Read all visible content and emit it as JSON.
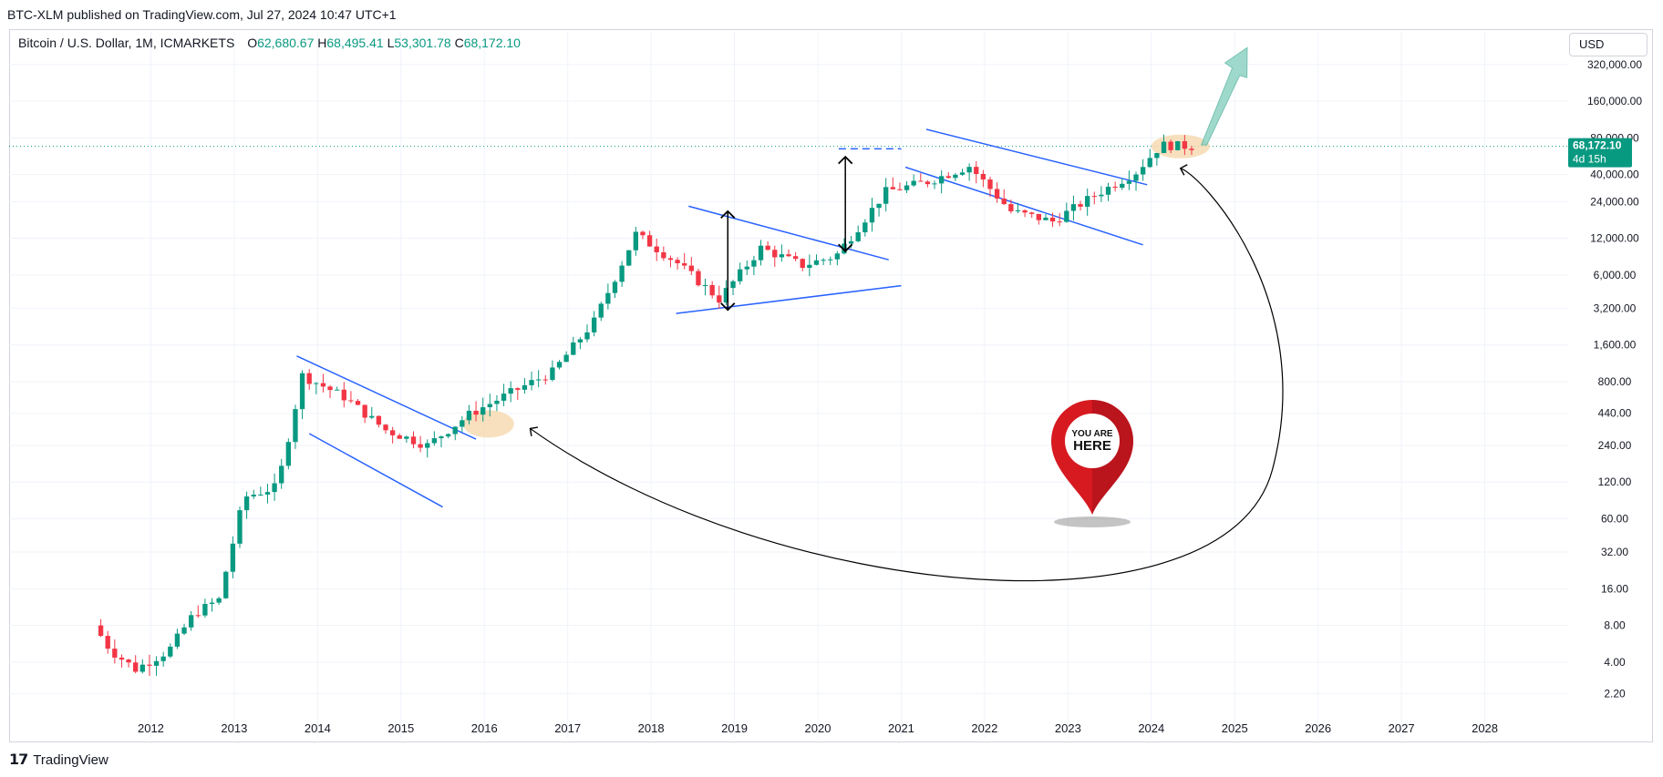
{
  "publisher": "BTC-XLM published on TradingView.com, Jul 27, 2024 10:47 UTC+1",
  "legend": {
    "symbol": "Bitcoin / U.S. Dollar, 1M, ICMARKETS",
    "open_label": "O",
    "open": "62,680.67",
    "high_label": "H",
    "high": "68,495.41",
    "low_label": "L",
    "low": "53,301.78",
    "close_label": "C",
    "close": "68,172.10"
  },
  "currency": "USD",
  "price_tag": {
    "price": "68,172.10",
    "countdown": "4d 15h"
  },
  "marker": {
    "line1": "YOU ARE",
    "line2": "HERE"
  },
  "footer": {
    "logo": "𝟭𝟳",
    "brand": "TradingView"
  },
  "colors": {
    "up": "#089981",
    "down": "#f23645",
    "trendline": "#2962ff",
    "highlight": "#f5d6a8",
    "arrow": "#8fd3c4",
    "pin": "#d71920"
  },
  "chart_data": {
    "type": "candlestick",
    "scale": "log",
    "grid": true,
    "y_ticks": [
      "320,000.00",
      "160,000.00",
      "80,000.00",
      "40,000.00",
      "24,000.00",
      "12,000.00",
      "6,000.00",
      "3,200.00",
      "1,600.00",
      "800.00",
      "440.00",
      "240.00",
      "120.00",
      "60.00",
      "32.00",
      "16.00",
      "8.00",
      "4.00",
      "2.20"
    ],
    "y_tick_values": [
      320000,
      160000,
      80000,
      40000,
      24000,
      12000,
      6000,
      3200,
      1600,
      800,
      440,
      240,
      120,
      60,
      32,
      16,
      8,
      4,
      2.2
    ],
    "x_ticks": [
      "2012",
      "2013",
      "2014",
      "2015",
      "2016",
      "2017",
      "2018",
      "2019",
      "2020",
      "2021",
      "2022",
      "2023",
      "2024",
      "2025",
      "2026",
      "2027",
      "2028"
    ],
    "x_tick_values": [
      2012,
      2013,
      2014,
      2015,
      2016,
      2017,
      2018,
      2019,
      2020,
      2021,
      2022,
      2023,
      2024,
      2025,
      2026,
      2027,
      2028
    ],
    "x_range": [
      2010.3,
      2029.0
    ],
    "y_range": [
      1.35,
      420000
    ],
    "last_price": 68172.1,
    "annual_close": [
      {
        "year": 2011.4,
        "value": 8
      },
      {
        "year": 2011.6,
        "value": 5
      },
      {
        "year": 2011.9,
        "value": 3.5
      },
      {
        "year": 2012.3,
        "value": 5
      },
      {
        "year": 2012.6,
        "value": 10
      },
      {
        "year": 2012.9,
        "value": 13
      },
      {
        "year": 2013.2,
        "value": 90
      },
      {
        "year": 2013.6,
        "value": 110
      },
      {
        "year": 2013.9,
        "value": 900
      },
      {
        "year": 2014.4,
        "value": 600
      },
      {
        "year": 2014.9,
        "value": 320
      },
      {
        "year": 2015.4,
        "value": 240
      },
      {
        "year": 2015.9,
        "value": 430
      },
      {
        "year": 2016.4,
        "value": 650
      },
      {
        "year": 2016.9,
        "value": 960
      },
      {
        "year": 2017.4,
        "value": 2500
      },
      {
        "year": 2017.9,
        "value": 13000
      },
      {
        "year": 2018.4,
        "value": 7500
      },
      {
        "year": 2018.9,
        "value": 3800
      },
      {
        "year": 2019.4,
        "value": 10000
      },
      {
        "year": 2019.9,
        "value": 7200
      },
      {
        "year": 2020.3,
        "value": 8600
      },
      {
        "year": 2020.9,
        "value": 29000
      },
      {
        "year": 2021.4,
        "value": 35000
      },
      {
        "year": 2021.9,
        "value": 47000
      },
      {
        "year": 2022.4,
        "value": 20000
      },
      {
        "year": 2022.9,
        "value": 16500
      },
      {
        "year": 2023.4,
        "value": 27000
      },
      {
        "year": 2023.9,
        "value": 42000
      },
      {
        "year": 2024.2,
        "value": 70000
      },
      {
        "year": 2024.55,
        "value": 68172
      }
    ]
  }
}
